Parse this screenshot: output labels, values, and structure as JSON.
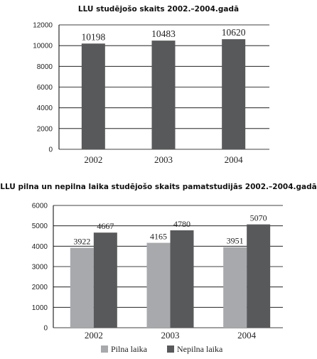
{
  "chart_data": [
    {
      "type": "bar",
      "title": "LLU studējošo skaits 2002.–2004.gadā",
      "categories": [
        "2002",
        "2003",
        "2004"
      ],
      "values": [
        10198,
        10483,
        10620
      ],
      "ylim": [
        0,
        12000
      ],
      "yticks": [
        0,
        2000,
        4000,
        6000,
        8000,
        10000,
        12000
      ],
      "grid": true,
      "colors": {
        "bar": "#58595b"
      }
    },
    {
      "type": "bar",
      "title": "LLU pilna un nepilna laika studējošo skaits pamatstudijās 2002.–2004.gadā",
      "categories": [
        "2002",
        "2003",
        "2004"
      ],
      "series": [
        {
          "name": "Pilna laika",
          "values": [
            3922,
            4165,
            3951
          ],
          "color": "#a7a9ac"
        },
        {
          "name": "Nepilna laika",
          "values": [
            4667,
            4780,
            5070
          ],
          "color": "#58595b"
        }
      ],
      "ylim": [
        0,
        6000
      ],
      "yticks": [
        0,
        1000,
        2000,
        3000,
        4000,
        5000,
        6000
      ],
      "grid": true,
      "legend": "bottom"
    }
  ]
}
